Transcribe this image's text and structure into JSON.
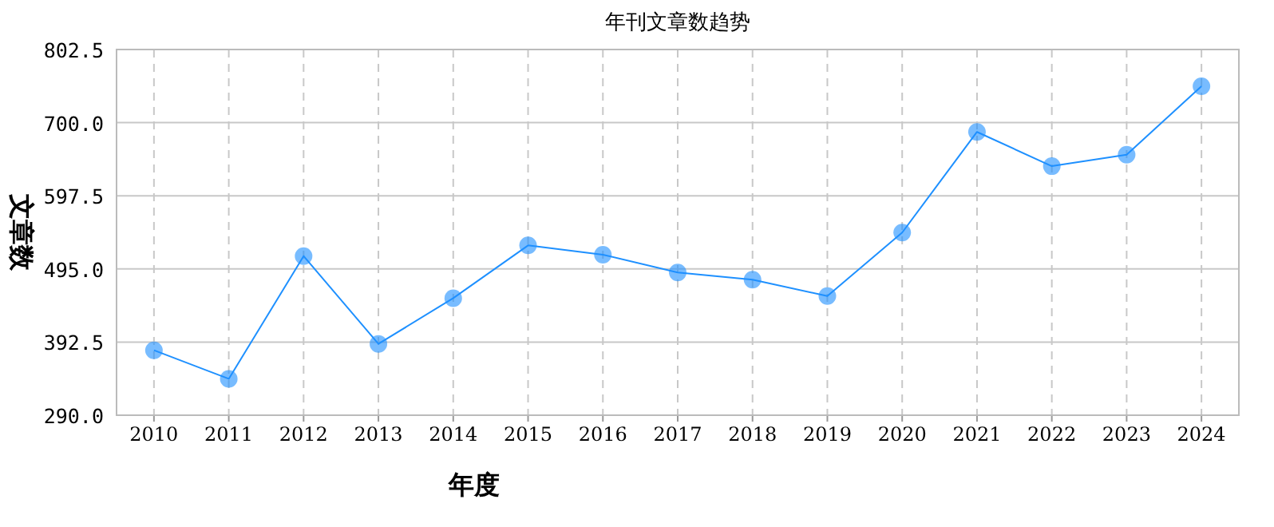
{
  "chart_data": {
    "type": "line",
    "title": "年刊文章数趋势",
    "xlabel": "年度",
    "ylabel": "文章数",
    "categories": [
      "2010",
      "2011",
      "2012",
      "2013",
      "2014",
      "2015",
      "2016",
      "2017",
      "2018",
      "2019",
      "2020",
      "2021",
      "2022",
      "2023",
      "2024"
    ],
    "series": [
      {
        "color": "#1e90ff",
        "values": [
          381,
          341,
          513,
          390,
          454,
          528,
          515,
          490,
          480,
          457,
          546,
          687,
          639,
          655,
          751
        ]
      }
    ],
    "ylim": [
      290,
      802.5
    ],
    "yticks": [
      {
        "value": 290,
        "label": "290.0"
      },
      {
        "value": 392.5,
        "label": "392.5"
      },
      {
        "value": 495,
        "label": "495.0"
      },
      {
        "value": 597.5,
        "label": "597.5"
      },
      {
        "value": 700,
        "label": "700.0"
      },
      {
        "value": 802.5,
        "label": "802.5"
      }
    ],
    "grid": true,
    "marker": "circle",
    "line_style": "solid"
  }
}
